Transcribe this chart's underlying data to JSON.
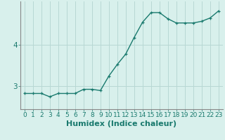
{
  "x": [
    0,
    1,
    2,
    3,
    4,
    5,
    6,
    7,
    8,
    9,
    10,
    11,
    12,
    13,
    14,
    15,
    16,
    17,
    18,
    19,
    20,
    21,
    22,
    23
  ],
  "y": [
    2.83,
    2.83,
    2.83,
    2.75,
    2.83,
    2.83,
    2.83,
    2.93,
    2.93,
    2.9,
    3.25,
    3.53,
    3.78,
    4.18,
    4.55,
    4.78,
    4.78,
    4.63,
    4.53,
    4.53,
    4.53,
    4.57,
    4.65,
    4.82
  ],
  "line_color": "#1a7a6e",
  "marker": "+",
  "marker_size": 3,
  "background_color": "#d8f0ec",
  "grid_color": "#b8d8d4",
  "xlabel": "Humidex (Indice chaleur)",
  "xlabel_fontsize": 8,
  "yticks": [
    3,
    4
  ],
  "ylim": [
    2.45,
    5.05
  ],
  "xlim": [
    -0.5,
    23.5
  ],
  "xtick_labels": [
    "0",
    "1",
    "2",
    "3",
    "4",
    "5",
    "6",
    "7",
    "8",
    "9",
    "10",
    "11",
    "12",
    "13",
    "14",
    "15",
    "16",
    "17",
    "18",
    "19",
    "20",
    "21",
    "22",
    "23"
  ],
  "tick_fontsize": 6.5,
  "line_width": 1.0
}
